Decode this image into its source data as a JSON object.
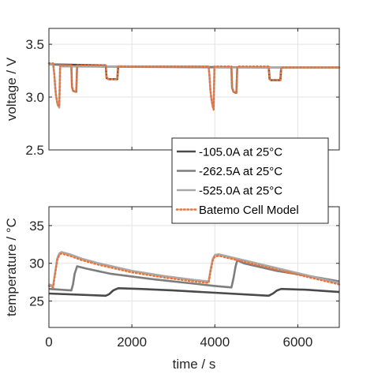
{
  "chart_data": [
    {
      "type": "line",
      "panel": "top",
      "xlabel": "",
      "ylabel": "voltage / V",
      "xlim": [
        0,
        7000
      ],
      "ylim": [
        2.5,
        3.65
      ],
      "yticks": [
        2.5,
        3.0,
        3.5
      ],
      "ytick_labels": [
        "2.5",
        "3.0",
        "3.5"
      ],
      "grid": true,
      "series": [
        {
          "name": "-105.0A at 25°C",
          "color": "#4a4a4a",
          "x": [
            0,
            1370,
            1390,
            1440,
            1600,
            1650,
            1670,
            5300,
            5320,
            5360,
            5540,
            5580,
            5600,
            7000
          ],
          "y": [
            3.31,
            3.3,
            3.18,
            3.17,
            3.17,
            3.17,
            3.29,
            3.28,
            3.17,
            3.16,
            3.16,
            3.16,
            3.28,
            3.28
          ]
        },
        {
          "name": "-262.5A at 25°C",
          "color": "#7d7d7d",
          "x": [
            0,
            540,
            555,
            580,
            640,
            660,
            680,
            4400,
            4415,
            4450,
            4500,
            4520,
            4540,
            7000
          ],
          "y": [
            3.31,
            3.3,
            3.1,
            3.06,
            3.05,
            3.05,
            3.29,
            3.28,
            3.09,
            3.05,
            3.04,
            3.04,
            3.28,
            3.28
          ]
        },
        {
          "name": "-525.0A at 25°C",
          "color": "#a9a9a9",
          "x": [
            0,
            100,
            130,
            150,
            170,
            190,
            210,
            250,
            270,
            3850,
            3870,
            3890,
            3910,
            3930,
            3950,
            3970,
            3990,
            7000
          ],
          "y": [
            3.31,
            3.31,
            3.22,
            3.1,
            3.02,
            2.97,
            2.93,
            2.9,
            3.29,
            3.29,
            3.2,
            3.08,
            3.0,
            2.95,
            2.91,
            2.89,
            3.28,
            3.28
          ]
        },
        {
          "name": "Batemo Cell Model",
          "color": "#e8743b",
          "dotted": true,
          "x": [
            0,
            100,
            130,
            150,
            170,
            190,
            210,
            250,
            270,
            540,
            555,
            580,
            640,
            660,
            680,
            1370,
            1390,
            1440,
            1650,
            1670,
            3850,
            3870,
            3890,
            3910,
            3930,
            3950,
            3970,
            3990,
            4400,
            4415,
            4450,
            4520,
            4540,
            5300,
            5320,
            5360,
            5580,
            5600,
            7000
          ],
          "y": [
            3.32,
            3.32,
            3.22,
            3.1,
            3.02,
            2.97,
            2.93,
            2.91,
            3.3,
            3.3,
            3.1,
            3.06,
            3.05,
            3.05,
            3.3,
            3.3,
            3.18,
            3.17,
            3.17,
            3.29,
            3.29,
            3.2,
            3.08,
            3.0,
            2.95,
            2.91,
            2.88,
            3.29,
            3.29,
            3.09,
            3.05,
            3.04,
            3.29,
            3.29,
            3.17,
            3.16,
            3.16,
            3.28,
            3.28
          ]
        }
      ]
    },
    {
      "type": "line",
      "panel": "bottom",
      "xlabel": "time / s",
      "ylabel": "temperature / °C",
      "xlim": [
        0,
        7000
      ],
      "ylim": [
        21.5,
        37.5
      ],
      "xticks": [
        0,
        2000,
        4000,
        6000
      ],
      "xtick_labels": [
        "0",
        "2000",
        "4000",
        "6000"
      ],
      "yticks": [
        25,
        30,
        35
      ],
      "ytick_labels": [
        "25",
        "30",
        "35"
      ],
      "grid": true,
      "series": [
        {
          "name": "-105.0A at 25°C",
          "color": "#4a4a4a",
          "x": [
            0,
            1370,
            1450,
            1550,
            1670,
            2200,
            3000,
            4000,
            5000,
            5300,
            5400,
            5500,
            5600,
            6200,
            7000
          ],
          "y": [
            26.0,
            25.7,
            25.9,
            26.4,
            26.7,
            26.6,
            26.4,
            26.1,
            25.8,
            25.7,
            26.0,
            26.4,
            26.6,
            26.5,
            26.2
          ]
        },
        {
          "name": "-262.5A at 25°C",
          "color": "#7d7d7d",
          "x": [
            0,
            540,
            580,
            620,
            680,
            900,
            1500,
            2500,
            3000,
            3500,
            4000,
            4400,
            4450,
            4500,
            4540,
            4700,
            5500,
            6500,
            7000
          ],
          "y": [
            26.6,
            26.4,
            27.2,
            28.6,
            29.6,
            29.3,
            28.6,
            27.9,
            27.6,
            27.3,
            27.0,
            26.8,
            28.0,
            29.6,
            30.4,
            30.0,
            29.0,
            28.1,
            27.6
          ]
        },
        {
          "name": "-525.0A at 25°C",
          "color": "#a9a9a9",
          "x": [
            0,
            100,
            150,
            200,
            250,
            300,
            500,
            800,
            1200,
            2000,
            2800,
            3500,
            3850,
            3900,
            3950,
            4000,
            4100,
            4400,
            5000,
            6000,
            7000
          ],
          "y": [
            27.2,
            27.0,
            28.8,
            30.6,
            31.3,
            31.5,
            31.2,
            30.6,
            30.0,
            29.0,
            28.3,
            27.8,
            27.6,
            29.2,
            30.6,
            31.1,
            31.2,
            30.8,
            30.0,
            28.7,
            27.4
          ]
        },
        {
          "name": "Batemo Cell Model",
          "color": "#e8743b",
          "dotted": true,
          "x": [
            0,
            100,
            150,
            200,
            250,
            300,
            500,
            800,
            1200,
            2000,
            2800,
            3500,
            3850,
            3900,
            3950,
            4000,
            4100,
            4400,
            5000,
            6000,
            7000
          ],
          "y": [
            27.0,
            26.8,
            28.6,
            30.4,
            31.1,
            31.3,
            31.0,
            30.4,
            29.8,
            28.8,
            28.1,
            27.6,
            27.4,
            29.0,
            30.4,
            30.9,
            31.0,
            30.6,
            29.8,
            28.5,
            27.2
          ]
        }
      ]
    }
  ],
  "legend": {
    "placement": "center-right",
    "items": [
      {
        "label": "-105.0A at 25°C",
        "color": "#4a4a4a",
        "dotted": false
      },
      {
        "label": "-262.5A at 25°C",
        "color": "#7d7d7d",
        "dotted": false
      },
      {
        "label": "-525.0A at 25°C",
        "color": "#a9a9a9",
        "dotted": false
      },
      {
        "label": "Batemo Cell Model",
        "color": "#e8743b",
        "dotted": true
      }
    ]
  }
}
